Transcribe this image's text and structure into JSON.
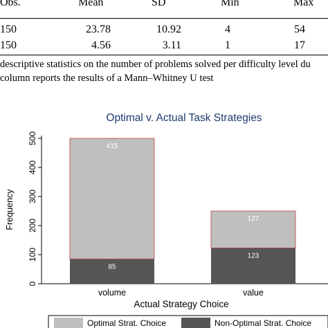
{
  "table": {
    "columns": [
      "Obs.",
      "Mean",
      "SD",
      "Min",
      "Max"
    ],
    "rows": [
      [
        "150",
        "23.78",
        "10.92",
        "4",
        "54"
      ],
      [
        "150",
        "4.56",
        "3.11",
        "1",
        "17"
      ]
    ]
  },
  "caption": {
    "line1": "descriptive statistics on the number of problems solved per difficulty level du",
    "line2": "column reports the results of a Mann–Whitney U test"
  },
  "chart_data": {
    "type": "bar",
    "stacked": true,
    "title": "Optimal v. Actual Task Strategies",
    "xlabel": "Actual Strategy Choice",
    "ylabel": "Frequency",
    "categories": [
      "volume",
      "value"
    ],
    "ylim": [
      0,
      500
    ],
    "yticks": [
      "0",
      "100",
      "200",
      "300",
      "400",
      "500"
    ],
    "series": [
      {
        "name": "Non-Optimal Strat. Choice",
        "values": [
          85,
          123
        ],
        "color": "#555555"
      },
      {
        "name": "Optimal Strat. Choice",
        "values": [
          415,
          127
        ],
        "color": "#bfbfbf"
      }
    ],
    "legend_position": "bottom",
    "title_color": "#1e3a6e"
  }
}
